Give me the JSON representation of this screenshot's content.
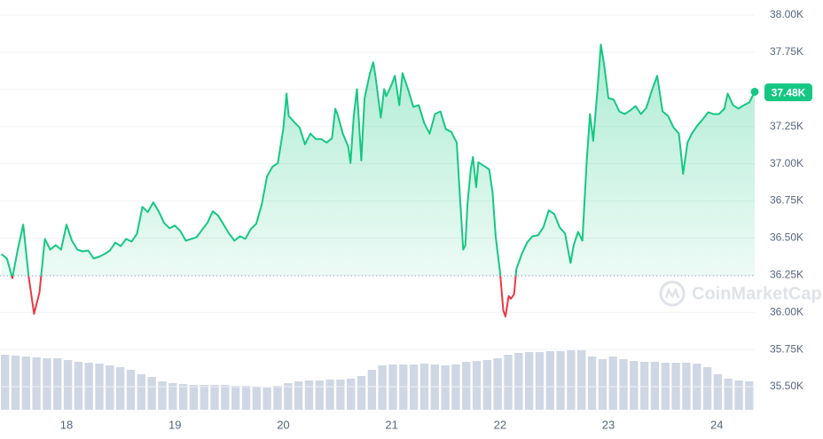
{
  "chart_data": {
    "type": "line",
    "x": [
      17.4,
      17.45,
      17.5,
      17.55,
      17.6,
      17.65,
      17.7,
      17.75,
      17.8,
      17.85,
      17.9,
      17.95,
      18.0,
      18.05,
      18.1,
      18.15,
      18.2,
      18.25,
      18.3,
      18.35,
      18.4,
      18.45,
      18.5,
      18.55,
      18.6,
      18.65,
      18.7,
      18.75,
      18.8,
      18.85,
      18.9,
      18.95,
      19.0,
      19.05,
      19.1,
      19.15,
      19.2,
      19.25,
      19.3,
      19.35,
      19.4,
      19.45,
      19.5,
      19.55,
      19.6,
      19.65,
      19.7,
      19.75,
      19.8,
      19.85,
      19.9,
      19.95,
      20.0,
      20.03,
      20.05,
      20.1,
      20.15,
      20.2,
      20.25,
      20.3,
      20.35,
      20.4,
      20.45,
      20.48,
      20.5,
      20.55,
      20.6,
      20.62,
      20.65,
      20.68,
      20.72,
      20.75,
      20.8,
      20.83,
      20.85,
      20.9,
      20.93,
      20.95,
      21.0,
      21.03,
      21.07,
      21.1,
      21.15,
      21.2,
      21.25,
      21.3,
      21.35,
      21.4,
      21.45,
      21.5,
      21.55,
      21.6,
      21.63,
      21.66,
      21.68,
      21.7,
      21.73,
      21.75,
      21.78,
      21.8,
      21.85,
      21.9,
      21.93,
      21.96,
      22.0,
      22.03,
      22.05,
      22.08,
      22.1,
      22.13,
      22.15,
      22.2,
      22.25,
      22.3,
      22.35,
      22.4,
      22.45,
      22.5,
      22.55,
      22.6,
      22.65,
      22.68,
      22.72,
      22.76,
      22.8,
      22.83,
      22.86,
      22.9,
      22.93,
      22.96,
      23.0,
      23.05,
      23.1,
      23.15,
      23.2,
      23.25,
      23.3,
      23.35,
      23.4,
      23.45,
      23.5,
      23.55,
      23.6,
      23.65,
      23.69,
      23.73,
      23.77,
      23.82,
      23.87,
      23.92,
      23.97,
      24.02,
      24.07,
      24.1,
      24.15,
      24.2,
      24.25,
      24.3,
      24.35
    ],
    "values": [
      36392,
      36362,
      36230,
      36422,
      36590,
      36242,
      35990,
      36134,
      36494,
      36422,
      36452,
      36422,
      36590,
      36482,
      36422,
      36410,
      36416,
      36362,
      36374,
      36392,
      36416,
      36470,
      36446,
      36494,
      36476,
      36530,
      36710,
      36674,
      36740,
      36680,
      36602,
      36566,
      36584,
      36548,
      36482,
      36494,
      36506,
      36554,
      36602,
      36680,
      36650,
      36590,
      36530,
      36482,
      36512,
      36494,
      36560,
      36596,
      36722,
      36914,
      36980,
      37004,
      37232,
      37472,
      37322,
      37280,
      37244,
      37130,
      37202,
      37166,
      37166,
      37142,
      37172,
      37370,
      37334,
      37202,
      37112,
      37004,
      37322,
      37502,
      37022,
      37442,
      37610,
      37682,
      37592,
      37310,
      37502,
      37454,
      37532,
      37592,
      37394,
      37610,
      37502,
      37382,
      37394,
      37274,
      37202,
      37334,
      37352,
      37232,
      37214,
      37142,
      36782,
      36422,
      36452,
      36734,
      36962,
      37046,
      36842,
      37010,
      36986,
      36962,
      36812,
      36512,
      36272,
      36014,
      35972,
      36110,
      36092,
      36122,
      36290,
      36392,
      36470,
      36512,
      36518,
      36572,
      36686,
      36662,
      36572,
      36530,
      36332,
      36452,
      36542,
      36482,
      37022,
      37334,
      37154,
      37502,
      37802,
      37670,
      37442,
      37430,
      37352,
      37334,
      37358,
      37388,
      37334,
      37376,
      37490,
      37592,
      37352,
      37322,
      37244,
      37202,
      36932,
      37142,
      37202,
      37256,
      37298,
      37346,
      37334,
      37334,
      37370,
      37472,
      37394,
      37370,
      37394,
      37412,
      37484
    ],
    "baseline": 36246,
    "color_up": "#16c784",
    "color_down": "#ea3943",
    "xlim": [
      17.386,
      24.35
    ],
    "xticks": [
      18,
      19,
      20,
      21,
      22,
      23,
      24
    ],
    "ylim": [
      35500,
      38000
    ],
    "yticks": [
      {
        "value": 35500,
        "label": "35.50K"
      },
      {
        "value": 35750,
        "label": "35.75K"
      },
      {
        "value": 36000,
        "label": "36.00K"
      },
      {
        "value": 36250,
        "label": "36.25K"
      },
      {
        "value": 36500,
        "label": "36.50K"
      },
      {
        "value": 36750,
        "label": "36.75K"
      },
      {
        "value": 37000,
        "label": "37.00K"
      },
      {
        "value": 37250,
        "label": "37.25K"
      },
      {
        "value": 37500,
        "label": "37.50K"
      },
      {
        "value": 37750,
        "label": "37.75K"
      },
      {
        "value": 38000,
        "label": "38.00K"
      }
    ],
    "grid": true,
    "last_label": {
      "value": 37480,
      "label": "37.48K"
    },
    "volume": {
      "values": [
        62,
        61,
        60,
        59,
        58,
        58,
        56,
        54,
        53,
        52,
        50,
        48,
        45,
        40,
        37,
        32,
        30,
        29,
        28,
        28,
        28,
        28,
        27,
        27,
        26,
        25,
        27,
        30,
        32,
        33,
        33,
        34,
        34,
        35,
        38,
        45,
        50,
        51,
        51,
        51,
        52,
        51,
        50,
        51,
        54,
        55,
        56,
        58,
        62,
        64,
        65,
        65,
        66,
        66,
        67,
        67,
        60,
        57,
        60,
        57,
        55,
        54,
        54,
        53,
        53,
        53,
        52,
        48,
        40,
        35,
        33,
        32
      ],
      "ylim": [
        0,
        100
      ],
      "color": "#cfd6e4"
    },
    "watermark": "CoinMarketCap"
  }
}
